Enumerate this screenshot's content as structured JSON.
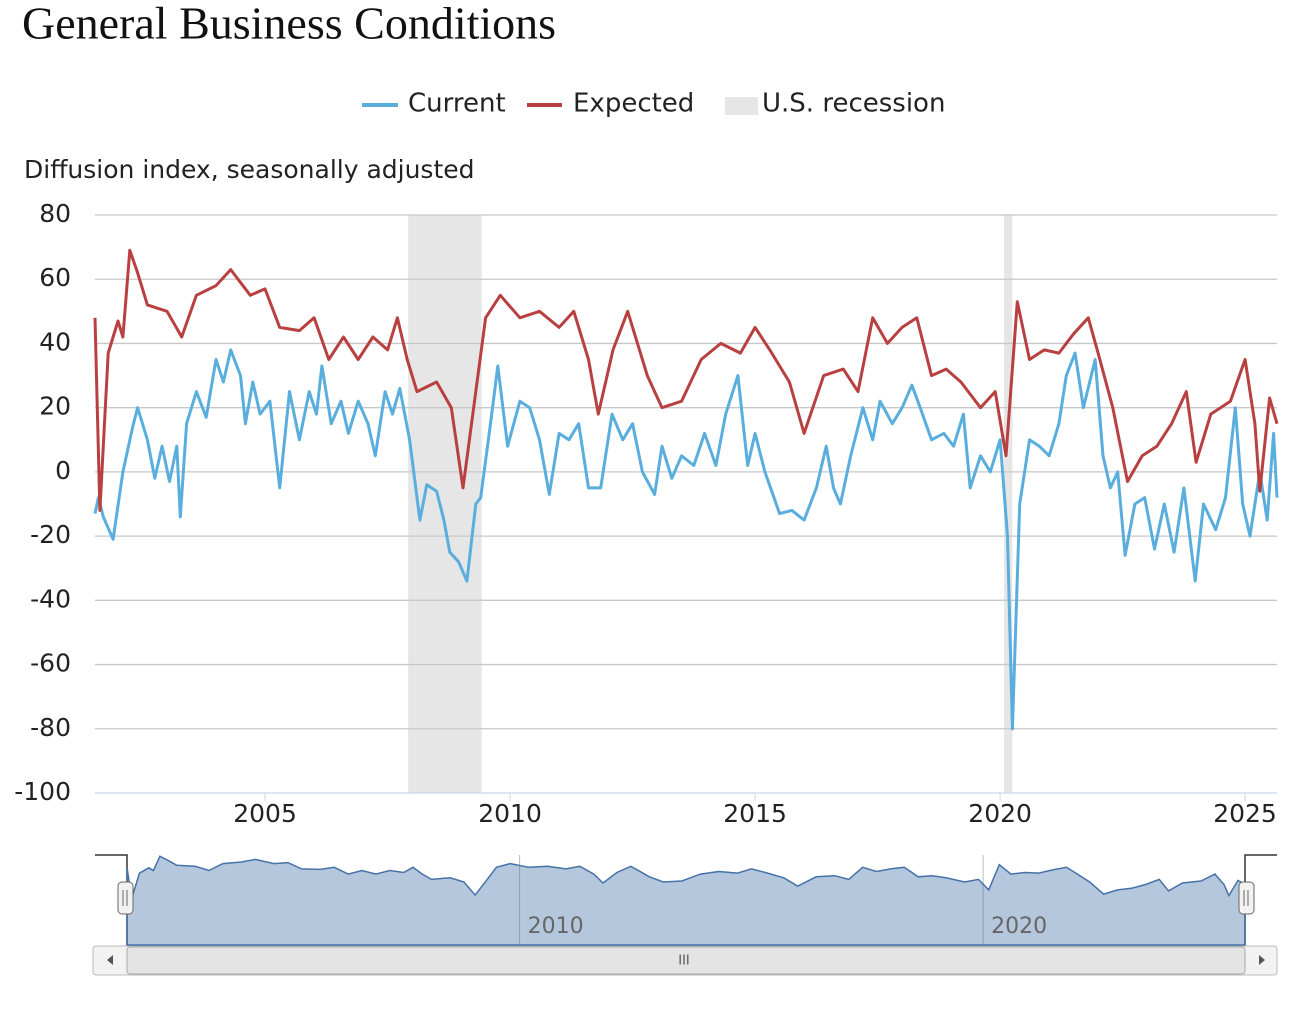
{
  "chart_data": {
    "type": "line",
    "title": "General Business Conditions",
    "y_label": "Diffusion index, seasonally adjusted",
    "xlim": [
      2001.53,
      2025.65
    ],
    "xticks": [
      2005,
      2010,
      2015,
      2020,
      2025
    ],
    "ylim": [
      -100,
      80
    ],
    "yticks": [
      -100,
      -80,
      -60,
      -40,
      -20,
      0,
      20,
      40,
      60,
      80
    ],
    "grid": true,
    "recession": {
      "name": "U.S. recession",
      "color": "#e6e6e6",
      "ranges": [
        [
          2007.92,
          2009.42
        ],
        [
          2020.08,
          2020.25
        ]
      ]
    },
    "series": [
      {
        "name": "Current",
        "color": "#5aaedd",
        "x": [
          2001.53,
          2001.6,
          2001.7,
          2001.9,
          2002.1,
          2002.3,
          2002.4,
          2002.6,
          2002.75,
          2002.9,
          2003.05,
          2003.2,
          2003.27,
          2003.4,
          2003.6,
          2003.8,
          2004.0,
          2004.15,
          2004.3,
          2004.5,
          2004.6,
          2004.75,
          2004.9,
          2005.1,
          2005.3,
          2005.5,
          2005.7,
          2005.9,
          2006.05,
          2006.16,
          2006.35,
          2006.55,
          2006.7,
          2006.9,
          2007.1,
          2007.25,
          2007.45,
          2007.6,
          2007.75,
          2007.95,
          2008.16,
          2008.3,
          2008.5,
          2008.65,
          2008.77,
          2008.95,
          2009.12,
          2009.3,
          2009.4,
          2009.6,
          2009.75,
          2009.95,
          2010.2,
          2010.4,
          2010.6,
          2010.8,
          2011.0,
          2011.2,
          2011.4,
          2011.6,
          2011.85,
          2012.08,
          2012.3,
          2012.5,
          2012.7,
          2012.95,
          2013.1,
          2013.3,
          2013.5,
          2013.75,
          2013.97,
          2014.2,
          2014.4,
          2014.65,
          2014.85,
          2015.0,
          2015.2,
          2015.5,
          2015.75,
          2016.0,
          2016.25,
          2016.45,
          2016.6,
          2016.74,
          2016.95,
          2017.2,
          2017.4,
          2017.55,
          2017.8,
          2018.0,
          2018.2,
          2018.37,
          2018.6,
          2018.85,
          2019.05,
          2019.25,
          2019.39,
          2019.6,
          2019.8,
          2020.0,
          2020.15,
          2020.25,
          2020.4,
          2020.6,
          2020.8,
          2021.0,
          2021.2,
          2021.35,
          2021.53,
          2021.7,
          2021.94,
          2022.1,
          2022.25,
          2022.4,
          2022.55,
          2022.75,
          2022.95,
          2023.15,
          2023.35,
          2023.55,
          2023.75,
          2023.98,
          2024.15,
          2024.4,
          2024.6,
          2024.8,
          2024.95,
          2025.1,
          2025.3,
          2025.45,
          2025.58,
          2025.65
        ],
        "values": [
          -13,
          -8,
          -14,
          -21,
          0,
          14,
          20,
          10,
          -2,
          8,
          -3,
          8,
          -14,
          15,
          25,
          17,
          35,
          28,
          38,
          30,
          15,
          28,
          18,
          22,
          -5,
          25,
          10,
          25,
          18,
          33,
          15,
          22,
          12,
          22,
          15,
          5,
          25,
          18,
          26,
          10,
          -15,
          -4,
          -6,
          -15,
          -25,
          -28,
          -34,
          -10,
          -8,
          15,
          33,
          8,
          22,
          20,
          10,
          -7,
          12,
          10,
          15,
          -5,
          -5,
          18,
          10,
          15,
          0,
          -7,
          8,
          -2,
          5,
          2,
          12,
          2,
          18,
          30,
          2,
          12,
          0,
          -13,
          -12,
          -15,
          -5,
          8,
          -5,
          -10,
          5,
          20,
          10,
          22,
          15,
          20,
          27,
          20,
          10,
          12,
          8,
          18,
          -5,
          5,
          0,
          10,
          -20,
          -80,
          -10,
          10,
          8,
          5,
          15,
          30,
          37,
          20,
          35,
          5,
          -5,
          0,
          -26,
          -10,
          -8,
          -24,
          -10,
          -25,
          -5,
          -34,
          -10,
          -18,
          -8,
          20,
          -10,
          -20,
          0,
          -15,
          12,
          -8
        ]
      },
      {
        "name": "Expected",
        "color": "#b94040",
        "x": [
          2001.53,
          2001.63,
          2001.8,
          2002.0,
          2002.1,
          2002.24,
          2002.4,
          2002.6,
          2003.0,
          2003.3,
          2003.6,
          2004.0,
          2004.3,
          2004.7,
          2005.0,
          2005.3,
          2005.7,
          2006.0,
          2006.3,
          2006.6,
          2006.9,
          2007.2,
          2007.5,
          2007.7,
          2007.9,
          2008.1,
          2008.5,
          2008.8,
          2009.04,
          2009.3,
          2009.5,
          2009.8,
          2010.2,
          2010.6,
          2011.0,
          2011.3,
          2011.6,
          2011.8,
          2012.1,
          2012.4,
          2012.8,
          2013.1,
          2013.5,
          2013.9,
          2014.3,
          2014.7,
          2015.0,
          2015.3,
          2015.7,
          2016.0,
          2016.4,
          2016.8,
          2017.1,
          2017.4,
          2017.7,
          2018.0,
          2018.3,
          2018.6,
          2018.9,
          2019.2,
          2019.6,
          2019.9,
          2020.12,
          2020.35,
          2020.6,
          2020.9,
          2021.2,
          2021.5,
          2021.8,
          2022.0,
          2022.3,
          2022.6,
          2022.9,
          2023.2,
          2023.5,
          2023.8,
          2024.0,
          2024.3,
          2024.7,
          2025.0,
          2025.2,
          2025.3,
          2025.5,
          2025.65
        ],
        "values": [
          48,
          -12,
          37,
          47,
          42,
          69,
          62,
          52,
          50,
          42,
          55,
          58,
          63,
          55,
          57,
          45,
          44,
          48,
          35,
          42,
          35,
          42,
          38,
          48,
          35,
          25,
          28,
          20,
          -5,
          25,
          48,
          55,
          48,
          50,
          45,
          50,
          35,
          18,
          38,
          50,
          30,
          20,
          22,
          35,
          40,
          37,
          45,
          38,
          28,
          12,
          30,
          32,
          25,
          48,
          40,
          45,
          48,
          30,
          32,
          28,
          20,
          25,
          5,
          53,
          35,
          38,
          37,
          43,
          48,
          37,
          20,
          -3,
          5,
          8,
          15,
          25,
          3,
          18,
          22,
          35,
          15,
          -6,
          23,
          15
        ]
      }
    ],
    "navigator": {
      "xticks": [
        2010,
        2020
      ]
    }
  }
}
